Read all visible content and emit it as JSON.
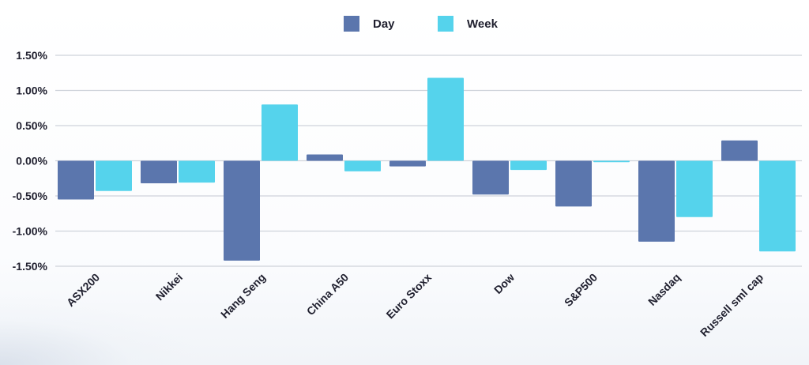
{
  "chart_data": {
    "type": "bar",
    "categories": [
      "ASX200",
      "Nikkei",
      "Hang Seng",
      "China A50",
      "Euro Stoxx",
      "Dow",
      "S&P500",
      "Nasdaq",
      "Russell sml cap"
    ],
    "series": [
      {
        "name": "Day",
        "color": "#5b76ad",
        "values": [
          -0.55,
          -0.32,
          -1.42,
          0.09,
          -0.08,
          -0.48,
          -0.65,
          -1.15,
          0.29
        ]
      },
      {
        "name": "Week",
        "color": "#55d3ec",
        "values": [
          -0.43,
          -0.31,
          0.8,
          -0.15,
          1.18,
          -0.13,
          -0.02,
          -0.8,
          -1.29
        ]
      }
    ],
    "yticks": [
      "1.50%",
      "1.00%",
      "0.50%",
      "0.00%",
      "-0.50%",
      "-1.00%",
      "-1.50%"
    ],
    "ytick_values": [
      1.5,
      1.0,
      0.5,
      0.0,
      -0.5,
      -1.0,
      -1.5
    ],
    "ylim": [
      -1.5,
      1.5
    ],
    "grid": true,
    "legend_position": "top-center"
  }
}
